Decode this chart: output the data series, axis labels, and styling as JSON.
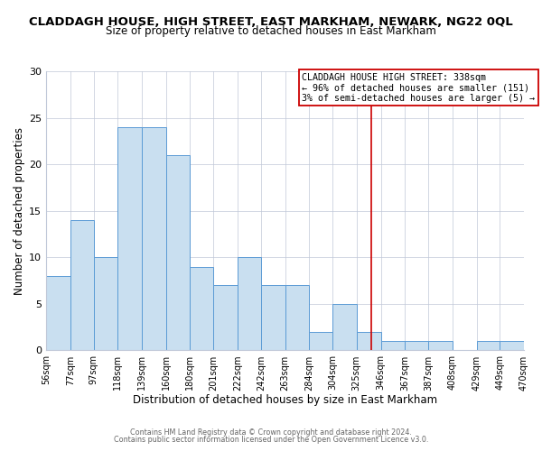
{
  "title": "CLADDAGH HOUSE, HIGH STREET, EAST MARKHAM, NEWARK, NG22 0QL",
  "subtitle": "Size of property relative to detached houses in East Markham",
  "xlabel": "Distribution of detached houses by size in East Markham",
  "ylabel": "Number of detached properties",
  "bin_edges": [
    56,
    77,
    97,
    118,
    139,
    160,
    180,
    201,
    222,
    242,
    263,
    284,
    304,
    325,
    346,
    367,
    387,
    408,
    429,
    449,
    470
  ],
  "counts": [
    8,
    14,
    10,
    24,
    24,
    21,
    9,
    7,
    10,
    7,
    7,
    2,
    5,
    2,
    1,
    1,
    1,
    0,
    1,
    1
  ],
  "bar_color": "#c9dff0",
  "bar_edge_color": "#5b9bd5",
  "vline_x": 338,
  "vline_color": "#cc0000",
  "annotation_title": "CLADDAGH HOUSE HIGH STREET: 338sqm",
  "annotation_line1": "← 96% of detached houses are smaller (151)",
  "annotation_line2": "3% of semi-detached houses are larger (5) →",
  "ylim": [
    0,
    30
  ],
  "yticks": [
    0,
    5,
    10,
    15,
    20,
    25,
    30
  ],
  "tick_labels": [
    "56sqm",
    "77sqm",
    "97sqm",
    "118sqm",
    "139sqm",
    "160sqm",
    "180sqm",
    "201sqm",
    "222sqm",
    "242sqm",
    "263sqm",
    "284sqm",
    "304sqm",
    "325sqm",
    "346sqm",
    "367sqm",
    "387sqm",
    "408sqm",
    "429sqm",
    "449sqm",
    "470sqm"
  ],
  "footer1": "Contains HM Land Registry data © Crown copyright and database right 2024.",
  "footer2": "Contains public sector information licensed under the Open Government Licence v3.0.",
  "background_color": "#ffffff",
  "grid_color": "#c0c8d8",
  "title_fontsize": 9.5,
  "subtitle_fontsize": 8.5
}
